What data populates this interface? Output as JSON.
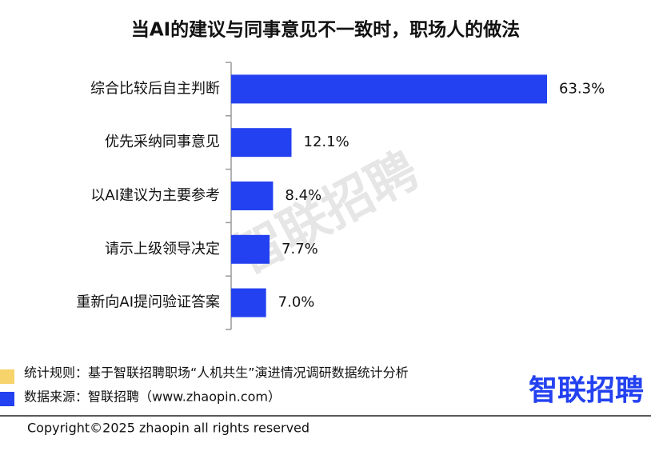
{
  "chart_data": {
    "type": "hbar",
    "title": "当AI的建议与同事意见不一致时，职场人的做法",
    "categories": [
      "综合比较后自主判断",
      "优先采纳同事意见",
      "以AI建议为主要参考",
      "请示上级领导决定",
      "重新向AI提问验证答案"
    ],
    "values": [
      63.3,
      12.1,
      8.4,
      7.7,
      7.0
    ],
    "value_labels": [
      "63.3%",
      "12.1%",
      "8.4%",
      "7.7%",
      "7.0%"
    ],
    "color": "#2341f0"
  },
  "footer": {
    "rule": "统计规则：基于智联招聘职场“人机共生”演进情况调研数据统计分析",
    "source": "数据来源：智联招聘（www.zhaopin.com）",
    "logo": "智联招聘",
    "copyright": "Copyright©2025 zhaopin all rights reserved"
  }
}
